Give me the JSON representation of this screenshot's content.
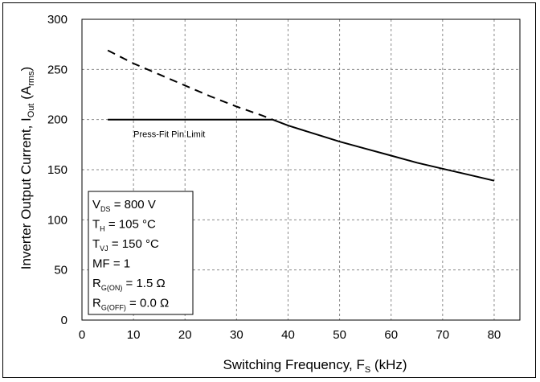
{
  "chart_data": {
    "type": "line",
    "title": "",
    "xlabel": {
      "main": "Switching Frequency, F",
      "sub": "S",
      "tail": " (kHz)"
    },
    "ylabel": {
      "main": "Inverter Output Current, I",
      "sub": "Out",
      "mid": " (A",
      "sub2": "rms",
      "tail": ")"
    },
    "xlim": [
      0,
      85
    ],
    "ylim": [
      0,
      300
    ],
    "xticks": [
      0,
      10,
      20,
      30,
      40,
      50,
      60,
      70,
      80
    ],
    "yticks": [
      0,
      50,
      100,
      150,
      200,
      250,
      300
    ],
    "grid": true,
    "grid_style": "dashed",
    "series": [
      {
        "style": "dashed",
        "color": "#000000",
        "x": [
          5,
          10,
          15,
          20,
          25,
          30,
          35,
          37
        ],
        "y": [
          269,
          256,
          245,
          234,
          223,
          213,
          204,
          200
        ]
      },
      {
        "style": "solid",
        "color": "#000000",
        "x": [
          5,
          37
        ],
        "y": [
          200,
          200
        ]
      },
      {
        "style": "solid",
        "color": "#000000",
        "x": [
          37,
          40,
          45,
          50,
          55,
          60,
          65,
          70,
          75,
          80
        ],
        "y": [
          200,
          194,
          186,
          178,
          171,
          164,
          157,
          151,
          145,
          139
        ]
      }
    ],
    "annotations": [
      {
        "text": "Press-Fit Pin Limit",
        "x": 10,
        "y": 193
      }
    ],
    "legend_box": {
      "placement": "bottom-left",
      "lines": [
        {
          "main": "V",
          "sub": "DS",
          "tail": " = 800 V"
        },
        {
          "main": "T",
          "sub": "H",
          "tail": " = 105 °C"
        },
        {
          "main": "T",
          "sub": "VJ",
          "tail": " = 150 °C"
        },
        {
          "main": "MF = 1",
          "sub": "",
          "tail": ""
        },
        {
          "main": "R",
          "sub": "G(ON)",
          "tail": " = 1.5 Ω"
        },
        {
          "main": "R",
          "sub": "G(OFF)",
          "tail": " = 0.0 Ω"
        }
      ]
    }
  }
}
